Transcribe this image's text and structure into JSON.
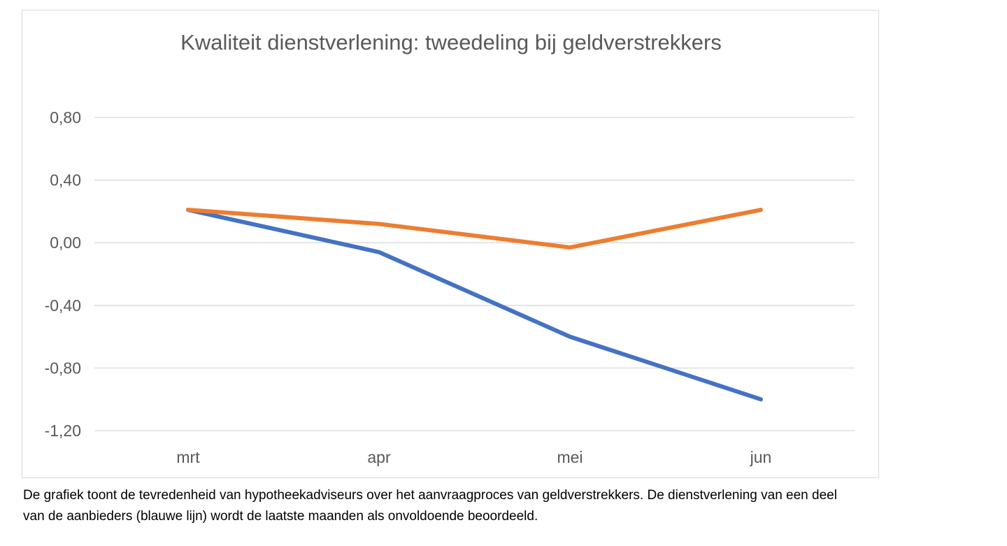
{
  "chart_data": {
    "type": "line",
    "title": "Kwaliteit dienstverlening: tweedeling bij geldverstrekkers",
    "categories": [
      "mrt",
      "apr",
      "mei",
      "jun"
    ],
    "ylim": [
      -1.2,
      0.8
    ],
    "yticks": [
      0.8,
      0.4,
      0.0,
      -0.4,
      -0.8,
      -1.2
    ],
    "ytick_labels": [
      "0,80",
      "0,40",
      "0,00",
      "-0,40",
      "-0,80",
      "-1,20"
    ],
    "grid": true,
    "legend": "none",
    "series": [
      {
        "color": "#4472c4",
        "values": [
          0.21,
          -0.06,
          -0.6,
          -1.0
        ]
      },
      {
        "color": "#ed7d31",
        "values": [
          0.21,
          0.12,
          -0.03,
          0.21
        ]
      }
    ]
  },
  "caption": {
    "line1": "De grafiek toont de tevredenheid van hypotheekadviseurs over het aanvraagproces van geldverstrekkers. De dienstverlening van een deel",
    "line2": "van de aanbieders (blauwe lijn) wordt de laatste maanden als onvoldoende beoordeeld."
  }
}
